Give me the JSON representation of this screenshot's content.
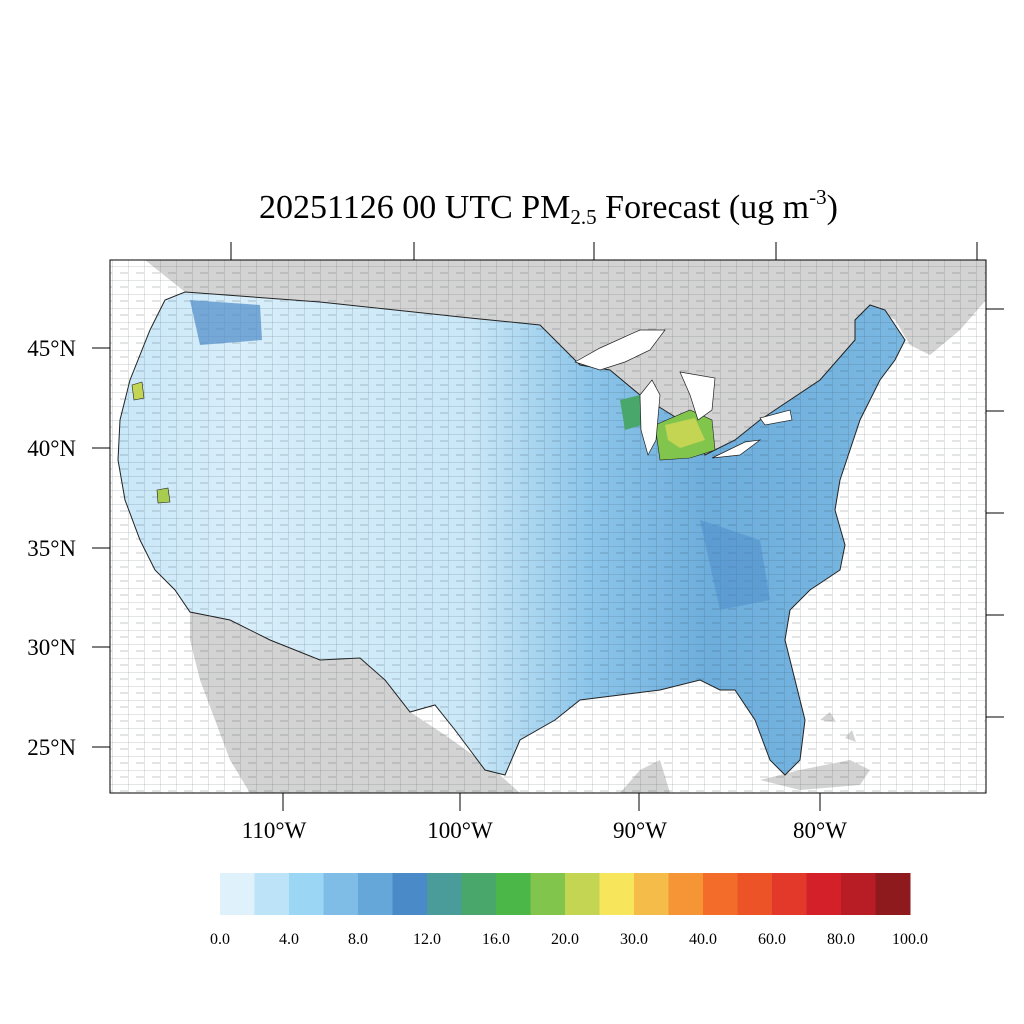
{
  "map": {
    "title_main": "20251126 00 UTC PM",
    "title_subscript": "2.5",
    "title_rest": " Forecast (ug m",
    "title_superscript": "-3",
    "title_close": ")",
    "lat_labels": [
      "45°N",
      "40°N",
      "35°N",
      "30°N",
      "25°N"
    ],
    "lon_labels": [
      "110°W",
      "100°W",
      "90°W",
      "80°W"
    ]
  },
  "legend": {
    "colors": [
      "#dff1fb",
      "#bce3f7",
      "#9bd6f4",
      "#7fbde6",
      "#66a7da",
      "#4b8ac8",
      "#4a9c9b",
      "#4aa76c",
      "#4ab748",
      "#82c54c",
      "#c3d553",
      "#f7e65c",
      "#f6bc4a",
      "#f59536",
      "#f36c2a",
      "#ec5428",
      "#e2392a",
      "#d42129",
      "#b81c24",
      "#8f1a1d"
    ],
    "labels": [
      "0.0",
      "4.0",
      "8.0",
      "12.0",
      "16.0",
      "20.0",
      "30.0",
      "40.0",
      "60.0",
      "80.0",
      "100.0"
    ]
  }
}
